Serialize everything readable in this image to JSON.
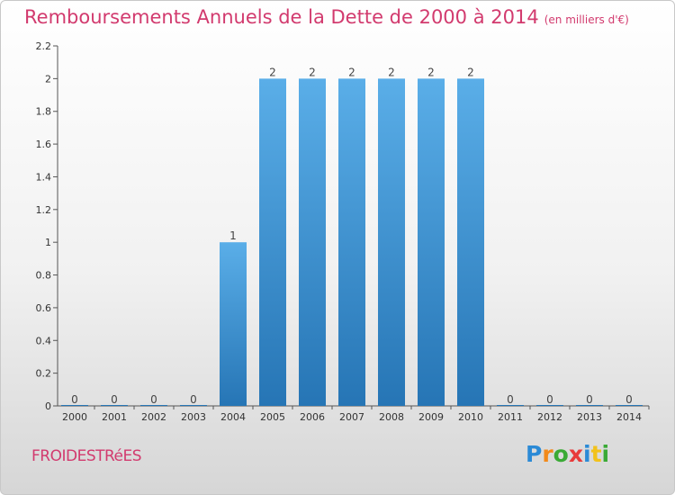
{
  "header": {
    "title": "Remboursements Annuels de la Dette de 2000 à 2014",
    "unit": "(en milliers d'€)"
  },
  "footer": {
    "commune": "FROIDESTRéES",
    "brand_letters": [
      "P",
      "r",
      "o",
      "x",
      "i",
      "t",
      "i"
    ],
    "brand_colors": [
      "#2b8ad6",
      "#f28a1b",
      "#3aaa35",
      "#e83a3a",
      "#2b8ad6",
      "#f2c21b",
      "#3aaa35"
    ]
  },
  "chart_data": {
    "type": "bar",
    "title": "Remboursements Annuels de la Dette de 2000 à 2014",
    "categories": [
      "2000",
      "2001",
      "2002",
      "2003",
      "2004",
      "2005",
      "2006",
      "2007",
      "2008",
      "2009",
      "2010",
      "2011",
      "2012",
      "2013",
      "2014"
    ],
    "values": [
      0,
      0,
      0,
      0,
      1,
      2,
      2,
      2,
      2,
      2,
      2,
      0,
      0,
      0,
      0
    ],
    "data_labels": [
      "0",
      "0",
      "0",
      "0",
      "1",
      "2",
      "2",
      "2",
      "2",
      "2",
      "2",
      "0",
      "0",
      "0",
      "0"
    ],
    "ylim": [
      0,
      2.2
    ],
    "yticks": [
      0,
      0.2,
      0.4,
      0.6,
      0.8,
      1,
      1.2,
      1.4,
      1.6,
      1.8,
      2,
      2.2
    ],
    "ytick_labels": [
      "0",
      "0.2",
      "0.4",
      "0.6",
      "0.8",
      "1",
      "1.2",
      "1.4",
      "1.6",
      "1.8",
      "2",
      "2.2"
    ],
    "bar_color_light": "#5aaee8",
    "bar_color_dark": "#2675b5",
    "grid": false
  }
}
